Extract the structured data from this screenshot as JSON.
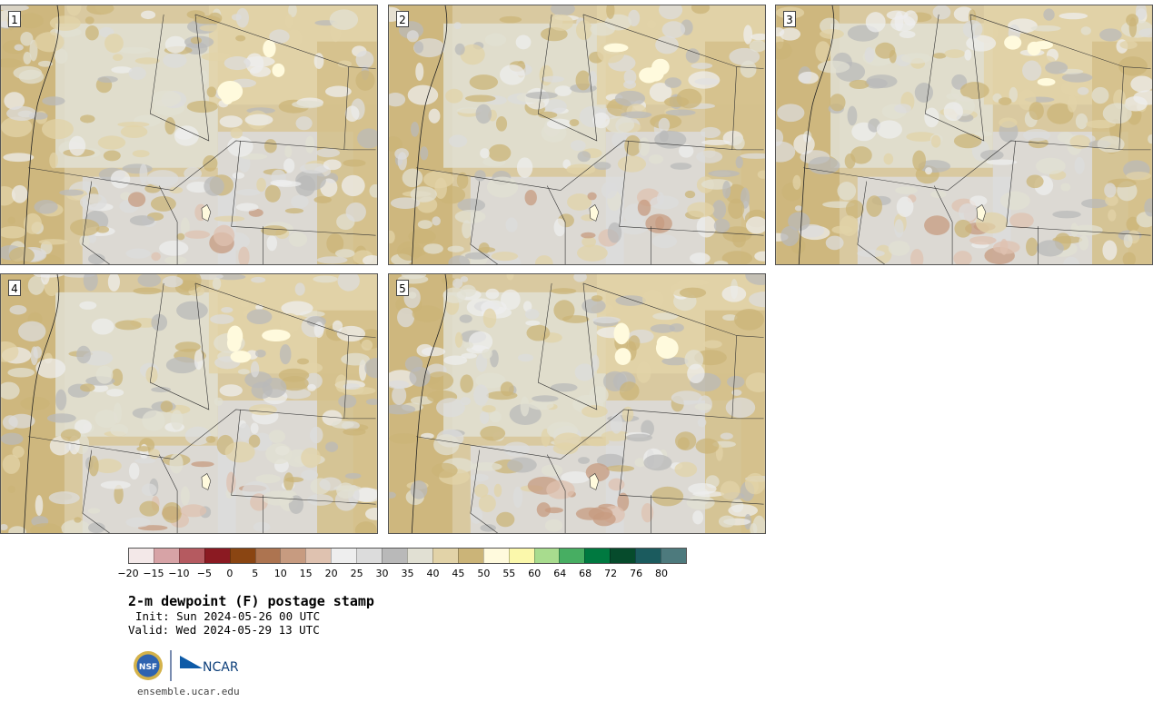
{
  "panels": [
    {
      "label": "1"
    },
    {
      "label": "2"
    },
    {
      "label": "3"
    },
    {
      "label": "4"
    },
    {
      "label": "5"
    }
  ],
  "colorbar": {
    "colors": [
      "#f3e8e8",
      "#d7a3a6",
      "#b55a60",
      "#8b1a22",
      "#8a4512",
      "#ad7450",
      "#c79b80",
      "#dfc2b0",
      "#eeeeee",
      "#dcdcdc",
      "#b9b9b9",
      "#e1e0d3",
      "#e2d3a8",
      "#cbb478",
      "#fffadd",
      "#fbf8ab",
      "#a8dc8e",
      "#47ae62",
      "#007940",
      "#064b2c",
      "#1b5b5e",
      "#4d7a7d"
    ],
    "tick_labels": [
      "−20",
      "−15",
      "−10",
      "−5",
      "0",
      "5",
      "10",
      "15",
      "20",
      "25",
      "30",
      "35",
      "40",
      "45",
      "50",
      "55",
      "60",
      "64",
      "68",
      "72",
      "76",
      "80"
    ]
  },
  "title": "2-m dewpoint (F) postage stamp",
  "init": "Init: Sun 2024-05-26 00 UTC",
  "valid": "Valid: Wed 2024-05-29 13 UTC",
  "logos": {
    "nsf": "NSF",
    "ncar": "NCAR"
  },
  "footer_url": "ensemble.ucar.edu"
}
